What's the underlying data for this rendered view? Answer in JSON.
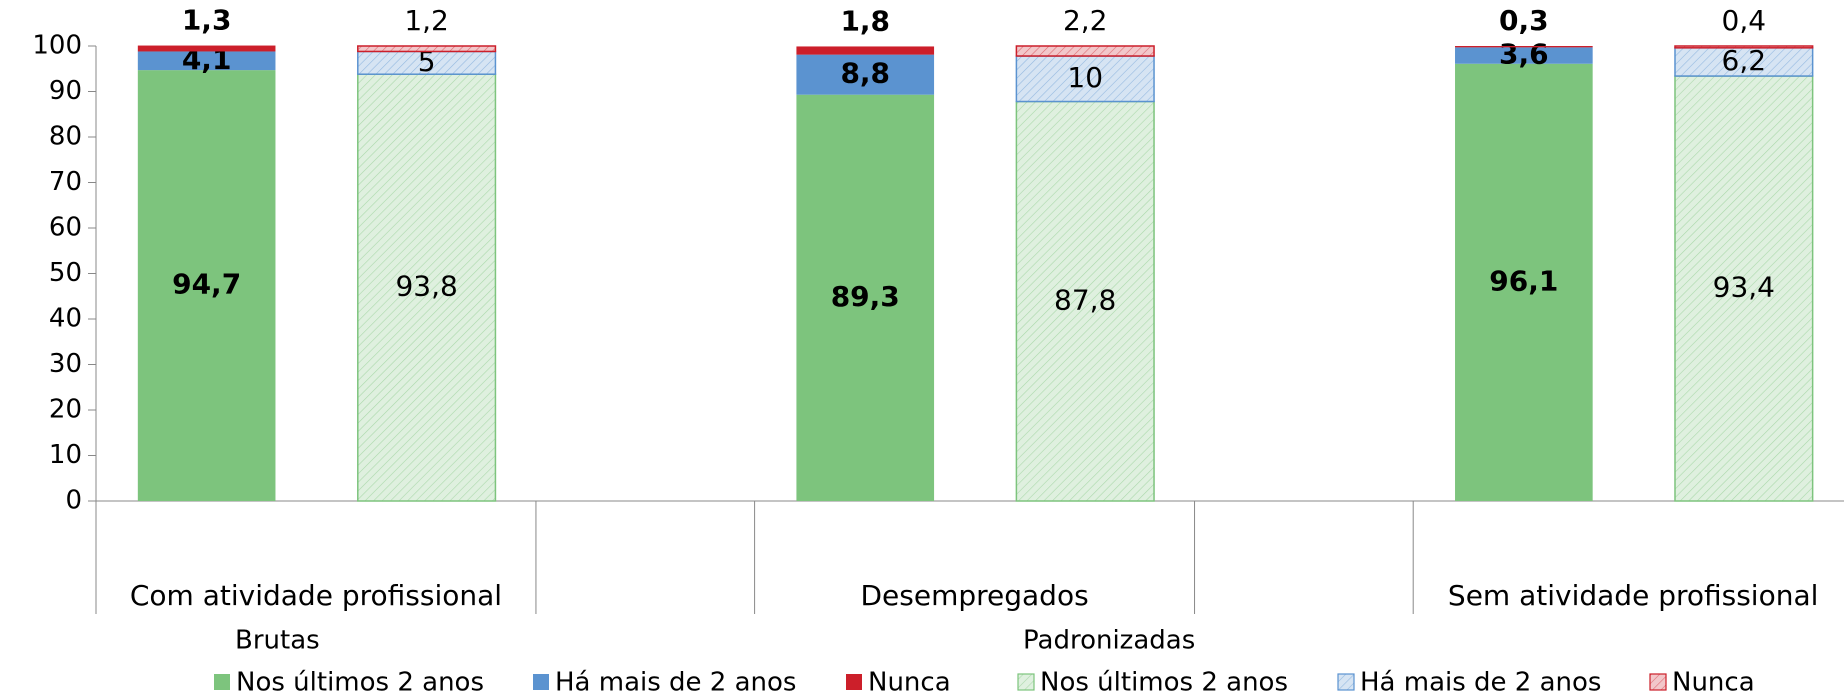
{
  "chart_data": {
    "type": "stacked_bar",
    "categories": [
      "Com atividade profissional",
      "Desempregados",
      "Sem atividade profissional"
    ],
    "ylim": [
      0,
      100
    ],
    "yticks": [
      0,
      10,
      20,
      30,
      40,
      50,
      60,
      70,
      80,
      90,
      100
    ],
    "groups": [
      {
        "name": "Brutas",
        "hatch": false,
        "bold_labels": true,
        "series": [
          {
            "name": "Nos últimos 2 anos",
            "color": "#7dc47d",
            "values": [
              94.7,
              89.3,
              96.1
            ],
            "value_labels": [
              "94,7",
              "89,3",
              "96,1"
            ]
          },
          {
            "name": "Há mais de 2 anos",
            "color": "#5b93d0",
            "values": [
              4.1,
              8.8,
              3.6
            ],
            "value_labels": [
              "4,1",
              "8,8",
              "3,6"
            ]
          },
          {
            "name": "Nunca",
            "color": "#cc1f2a",
            "values": [
              1.3,
              1.8,
              0.3
            ],
            "value_labels": [
              "1,3",
              "1,8",
              "0,3"
            ]
          }
        ]
      },
      {
        "name": "Padronizadas",
        "hatch": true,
        "bold_labels": false,
        "series": [
          {
            "name": "Nos últimos 2 anos",
            "color": "#7dc47d",
            "values": [
              93.8,
              87.8,
              93.4
            ],
            "value_labels": [
              "93,8",
              "87,8",
              "93,4"
            ]
          },
          {
            "name": "Há mais de 2 anos",
            "color": "#5b93d0",
            "values": [
              5,
              10,
              6.2
            ],
            "value_labels": [
              "5",
              "10",
              "6,2"
            ]
          },
          {
            "name": "Nunca",
            "color": "#cc1f2a",
            "values": [
              1.2,
              2.2,
              0.4
            ],
            "value_labels": [
              "1,2",
              "2,2",
              "0,4"
            ]
          }
        ]
      }
    ]
  }
}
